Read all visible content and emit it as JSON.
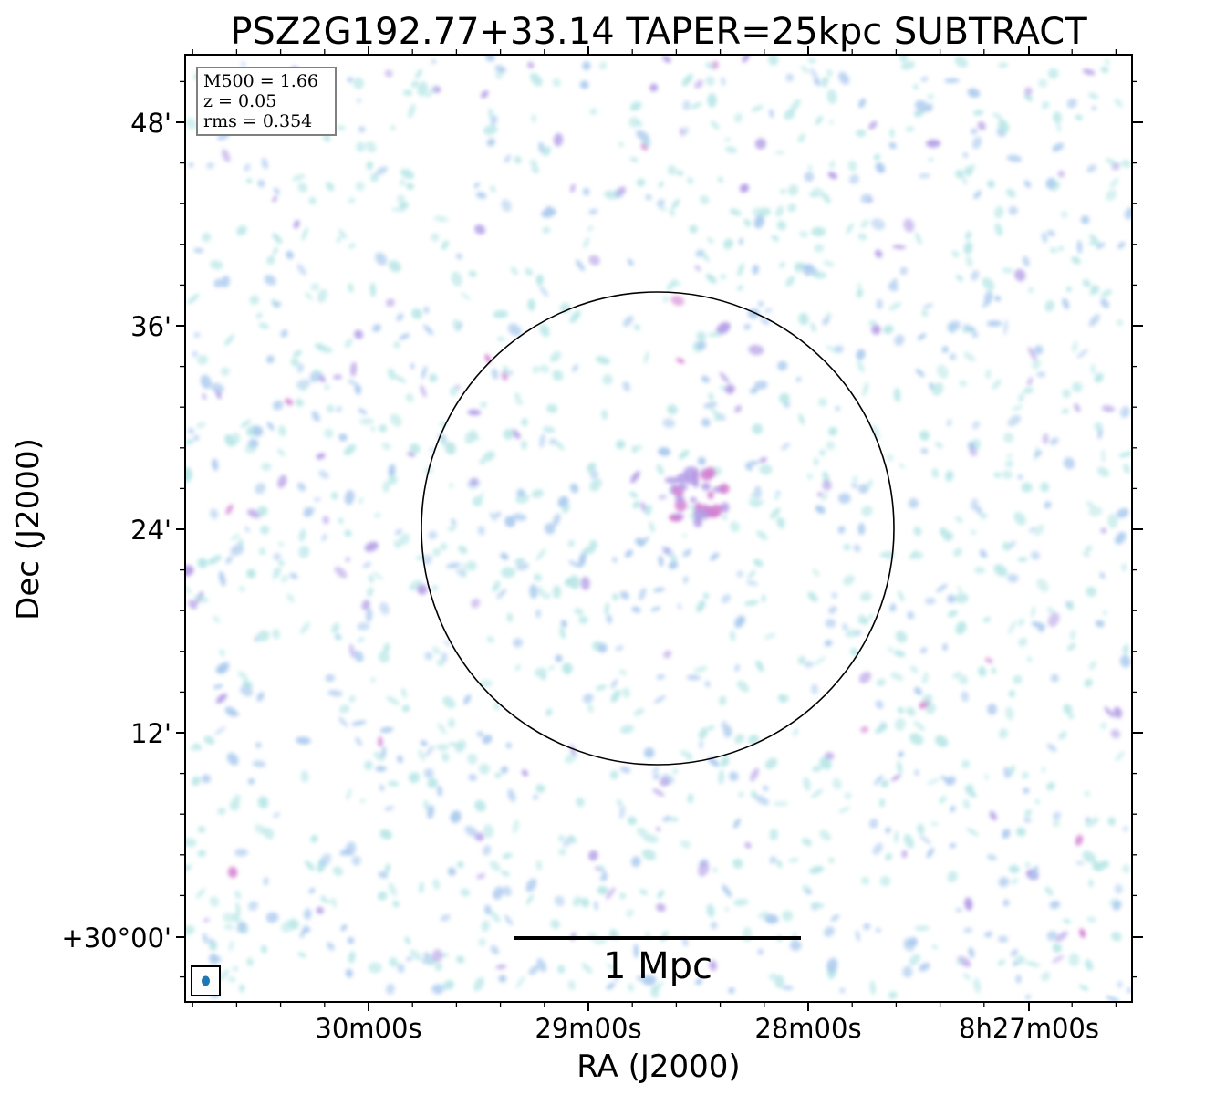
{
  "chart_data": {
    "type": "heatmap",
    "title": "PSZ2G192.77+33.14 TAPER=25kpc SUBTRACT",
    "xlabel": "RA (J2000)",
    "ylabel": "Dec (J2000)",
    "x_ticks": [
      "30m00s",
      "29m00s",
      "28m00s",
      "8h27m00s"
    ],
    "y_ticks": [
      "48'",
      "36'",
      "24'",
      "12'",
      "+30°00'"
    ],
    "info": [
      "M500 = 1.66",
      "z = 0.05",
      "rms = 0.354"
    ],
    "scale_bar_label": "1 Mpc",
    "grid": false,
    "colormap": [
      "#b8e6e6",
      "#a9c9ee",
      "#b39ce6",
      "#d27fd0"
    ],
    "circle_color": "#000000",
    "beam_color": "#1f77b4"
  }
}
